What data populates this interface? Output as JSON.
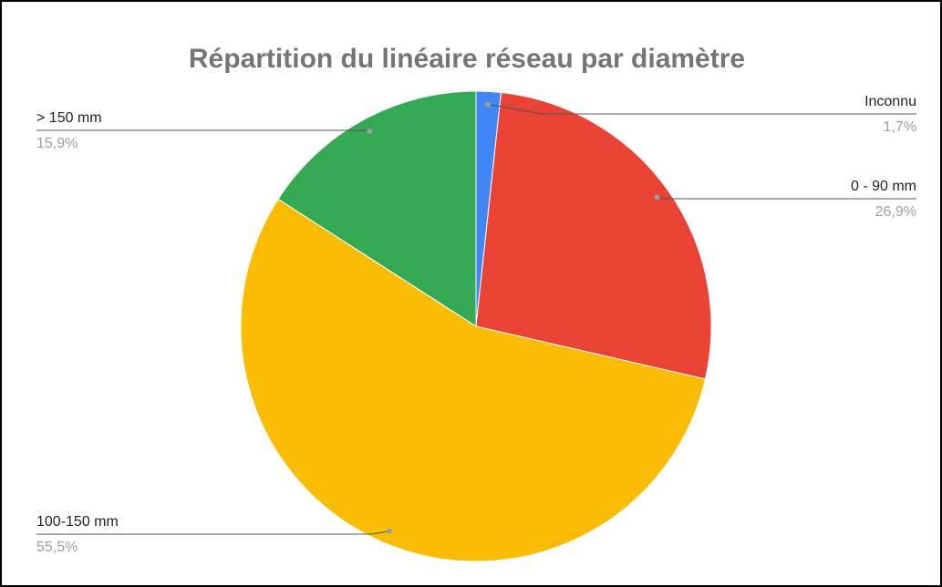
{
  "chart_data": {
    "type": "pie",
    "title": "Répartition du linéaire réseau par diamètre",
    "categories": [
      "Inconnu",
      "0 - 90 mm",
      "100-150 mm",
      "> 150 mm"
    ],
    "values": [
      1.7,
      26.9,
      55.5,
      15.9
    ],
    "value_labels": [
      "1,7%",
      "26,9%",
      "55,5%",
      "15,9%"
    ],
    "colors": [
      "#4285f4",
      "#ea4335",
      "#fbbc04",
      "#34a853"
    ]
  }
}
